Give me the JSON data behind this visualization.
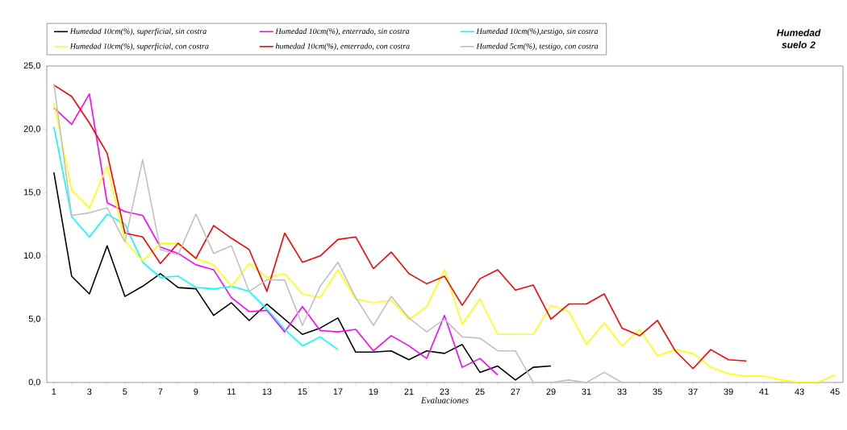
{
  "chart_data": {
    "type": "line",
    "title": "Humedad suelo 2",
    "xlabel": "Evaluaciones",
    "categories": [
      "1",
      null,
      "3",
      null,
      "5",
      null,
      "7",
      null,
      "9",
      null,
      "11",
      null,
      "13",
      null,
      "15",
      null,
      "17",
      null,
      "19",
      null,
      "21",
      null,
      "23",
      null,
      "25",
      null,
      "27",
      null,
      "29",
      null,
      "31",
      null,
      "33",
      null,
      "35",
      null,
      "37",
      null,
      "39",
      null,
      "41",
      null,
      "43",
      null,
      "45"
    ],
    "ylim": [
      0,
      25
    ],
    "yticks": [
      {
        "value": 0,
        "label": "0,0"
      },
      {
        "value": 5,
        "label": "5,0"
      },
      {
        "value": 10,
        "label": "10,0"
      },
      {
        "value": 15,
        "label": "15,0"
      },
      {
        "value": 20,
        "label": "20,0"
      },
      {
        "value": 25,
        "label": "25,0"
      }
    ],
    "legend": "top",
    "grid": false,
    "marker": "none",
    "line_style": "solid",
    "series": [
      {
        "name": "Humedad 10cm(%), superficial, sin costra",
        "color": "#000000",
        "values": [
          16.6,
          8.4,
          7.0,
          10.8,
          6.8,
          7.6,
          8.6,
          7.5,
          7.4,
          5.3,
          6.3,
          4.9,
          6.2,
          5.0,
          3.8,
          4.3,
          5.1,
          2.4,
          2.4,
          2.5,
          1.8,
          2.5,
          2.3,
          3.0,
          0.8,
          1.3,
          0.2,
          1.2,
          1.3,
          null,
          null,
          null,
          null,
          null,
          null,
          null,
          null,
          null,
          null,
          null,
          null,
          null,
          null,
          null,
          null
        ]
      },
      {
        "name": "Humedad 10cm(%), enterrado, sin costra",
        "color": "#ff00ff",
        "values": [
          21.7,
          20.4,
          22.8,
          14.2,
          13.5,
          13.2,
          10.7,
          10.2,
          9.3,
          8.9,
          6.7,
          5.6,
          5.7,
          4.0,
          6.0,
          4.1,
          4.0,
          4.2,
          2.5,
          3.7,
          2.9,
          1.9,
          5.3,
          1.2,
          1.9,
          0.6,
          null,
          null,
          null,
          null,
          null,
          null,
          null,
          null,
          null,
          null,
          null,
          null,
          null,
          null,
          null,
          null,
          null,
          null,
          null
        ]
      },
      {
        "name": "Humedad 10cm(%),testigo, sin costra",
        "color": "#00ffff",
        "values": [
          20.2,
          13.1,
          11.5,
          13.3,
          12.5,
          9.5,
          8.3,
          8.4,
          7.5,
          7.4,
          7.6,
          7.2,
          5.8,
          4.2,
          2.9,
          3.6,
          2.6,
          null,
          null,
          null,
          null,
          null,
          null,
          null,
          null,
          null,
          null,
          null,
          null,
          null,
          null,
          null,
          null,
          null,
          null,
          null,
          null,
          null,
          null,
          null,
          null,
          null,
          null,
          null,
          null
        ]
      },
      {
        "name": "Humedad 10cm(%), superficial, con costra",
        "color": "#ffff00",
        "values": [
          22.1,
          15.2,
          13.8,
          17.1,
          11.2,
          9.6,
          11.0,
          11.0,
          9.8,
          9.3,
          7.6,
          9.4,
          8.3,
          8.6,
          7.0,
          6.7,
          8.9,
          6.6,
          6.3,
          6.5,
          5.0,
          6.0,
          8.9,
          4.6,
          6.6,
          3.8,
          3.8,
          3.8,
          6.1,
          5.6,
          3.0,
          4.7,
          2.9,
          4.2,
          2.1,
          2.6,
          2.3,
          1.2,
          0.7,
          0.5,
          0.5,
          0.2,
          0.0,
          0.0,
          0.6
        ]
      },
      {
        "name": "humedad 10cm(%), enterrado, con costra",
        "color": "#ff0000",
        "values": [
          23.5,
          22.6,
          20.5,
          18.1,
          11.8,
          11.5,
          9.4,
          11.0,
          9.8,
          12.4,
          11.4,
          10.5,
          7.2,
          11.8,
          9.5,
          10.0,
          11.3,
          11.5,
          9.0,
          10.3,
          8.6,
          7.8,
          8.4,
          6.1,
          8.2,
          8.9,
          7.3,
          7.7,
          5.0,
          6.2,
          6.2,
          7.0,
          4.3,
          3.7,
          4.9,
          2.5,
          1.1,
          2.6,
          1.8,
          1.7,
          null,
          null,
          null,
          null,
          null
        ]
      },
      {
        "name": "Humedad 5cm(%), testigo, con costra",
        "color": "#c0c0c0",
        "values": [
          23.6,
          13.2,
          13.4,
          13.8,
          11.1,
          17.6,
          10.5,
          10.1,
          13.3,
          10.2,
          10.8,
          7.2,
          8.1,
          8.1,
          4.5,
          7.6,
          9.5,
          6.7,
          4.5,
          6.8,
          5.1,
          4.0,
          5.0,
          3.6,
          3.5,
          2.5,
          2.5,
          0.0,
          0.0,
          0.2,
          0.0,
          0.8,
          0.0,
          0.0,
          0.0,
          null,
          null,
          null,
          null,
          null,
          null,
          null,
          null,
          null,
          null
        ]
      }
    ]
  }
}
